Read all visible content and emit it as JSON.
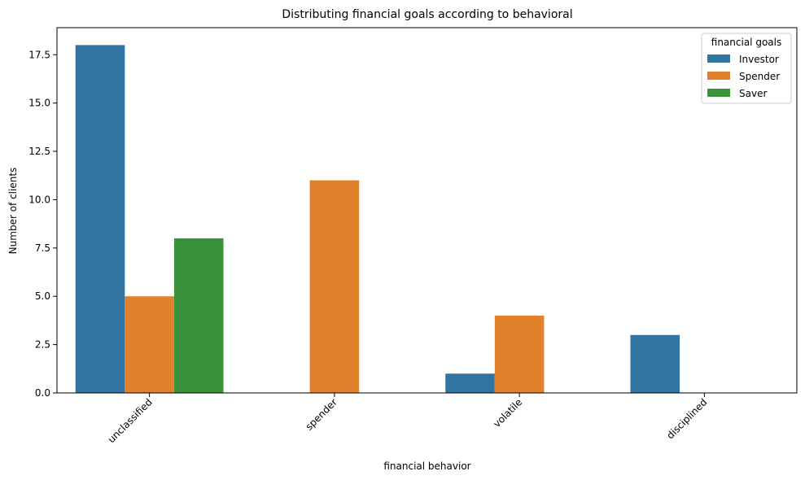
{
  "chart_data": {
    "type": "bar",
    "title": "Distributing financial goals according to behavioral",
    "xlabel": "financial behavior",
    "ylabel": "Number of clients",
    "categories": [
      "unclassified",
      "spender",
      "volatile",
      "disciplined"
    ],
    "series": [
      {
        "name": "Investor",
        "color": "#3274a1",
        "values": [
          18,
          0,
          1,
          3
        ]
      },
      {
        "name": "Spender",
        "color": "#e1812c",
        "values": [
          5,
          11,
          4,
          0
        ]
      },
      {
        "name": "Saver",
        "color": "#3a923a",
        "values": [
          8,
          0,
          0,
          0
        ]
      }
    ],
    "ylim": [
      0,
      18.9
    ],
    "yticks": [
      "0.0",
      "2.5",
      "5.0",
      "7.5",
      "10.0",
      "12.5",
      "15.0",
      "17.5"
    ],
    "ytick_values": [
      0,
      2.5,
      5,
      7.5,
      10,
      12.5,
      15,
      17.5
    ],
    "xtick_rotation_deg": 45,
    "grid": false,
    "legend": {
      "title": "financial goals",
      "placement": "top-right"
    }
  }
}
